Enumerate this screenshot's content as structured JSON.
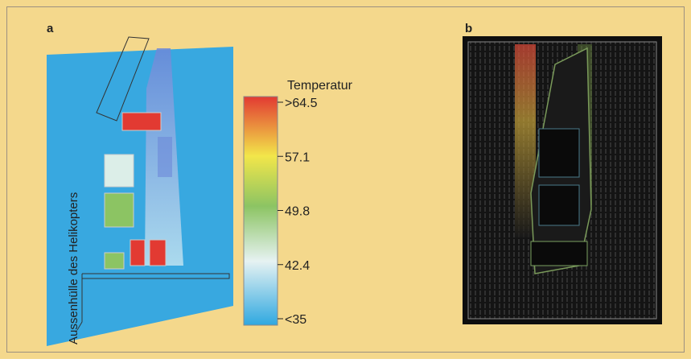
{
  "panels": {
    "a": {
      "label": "a",
      "side_label": "Aussenhülle des Helikopters"
    },
    "b": {
      "label": "b"
    }
  },
  "colorbar": {
    "title": "Temperatur",
    "ticks": [
      ">64.5",
      "57.1",
      "49.8",
      "42.4",
      "<35"
    ]
  }
}
